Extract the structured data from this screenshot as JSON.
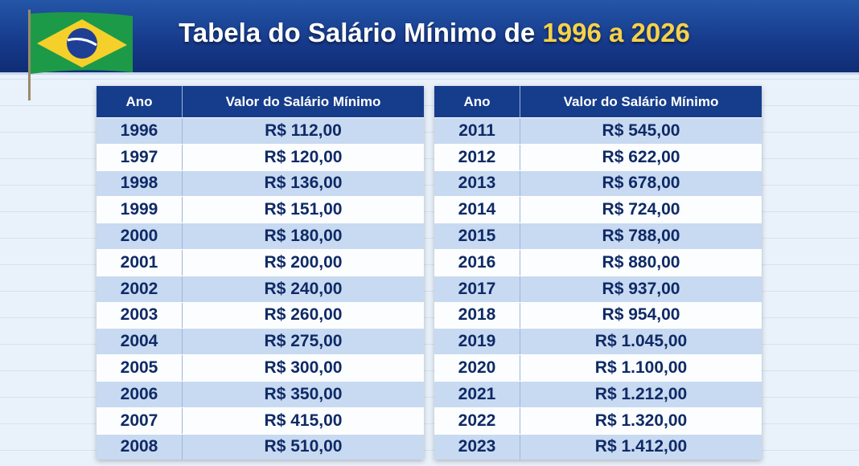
{
  "title": {
    "text": "Tabela do Salário Mínimo de",
    "highlight": "1996 a 2026"
  },
  "tables": [
    {
      "columns": [
        "Ano",
        "Valor do Salário Mínimo"
      ],
      "rows": [
        [
          "1996",
          "R$ 112,00"
        ],
        [
          "1997",
          "R$ 120,00"
        ],
        [
          "1998",
          "R$ 136,00"
        ],
        [
          "1999",
          "R$ 151,00"
        ],
        [
          "2000",
          "R$ 180,00"
        ],
        [
          "2001",
          "R$ 200,00"
        ],
        [
          "2002",
          "R$ 240,00"
        ],
        [
          "2003",
          "R$ 260,00"
        ],
        [
          "2004",
          "R$ 275,00"
        ],
        [
          "2005",
          "R$ 300,00"
        ],
        [
          "2006",
          "R$ 350,00"
        ],
        [
          "2007",
          "R$ 415,00"
        ],
        [
          "2008",
          "R$ 510,00"
        ]
      ]
    },
    {
      "columns": [
        "Ano",
        "Valor do Salário Mínimo"
      ],
      "rows": [
        [
          "2011",
          "R$ 545,00"
        ],
        [
          "2012",
          "R$ 622,00"
        ],
        [
          "2013",
          "R$ 678,00"
        ],
        [
          "2014",
          "R$ 724,00"
        ],
        [
          "2015",
          "R$ 788,00"
        ],
        [
          "2016",
          "R$ 880,00"
        ],
        [
          "2017",
          "R$ 937,00"
        ],
        [
          "2018",
          "R$ 954,00"
        ],
        [
          "2019",
          "R$ 1.045,00"
        ],
        [
          "2020",
          "R$ 1.100,00"
        ],
        [
          "2021",
          "R$ 1.212,00"
        ],
        [
          "2022",
          "R$ 1.320,00"
        ],
        [
          "2023",
          "R$ 1.412,00"
        ]
      ]
    }
  ]
}
